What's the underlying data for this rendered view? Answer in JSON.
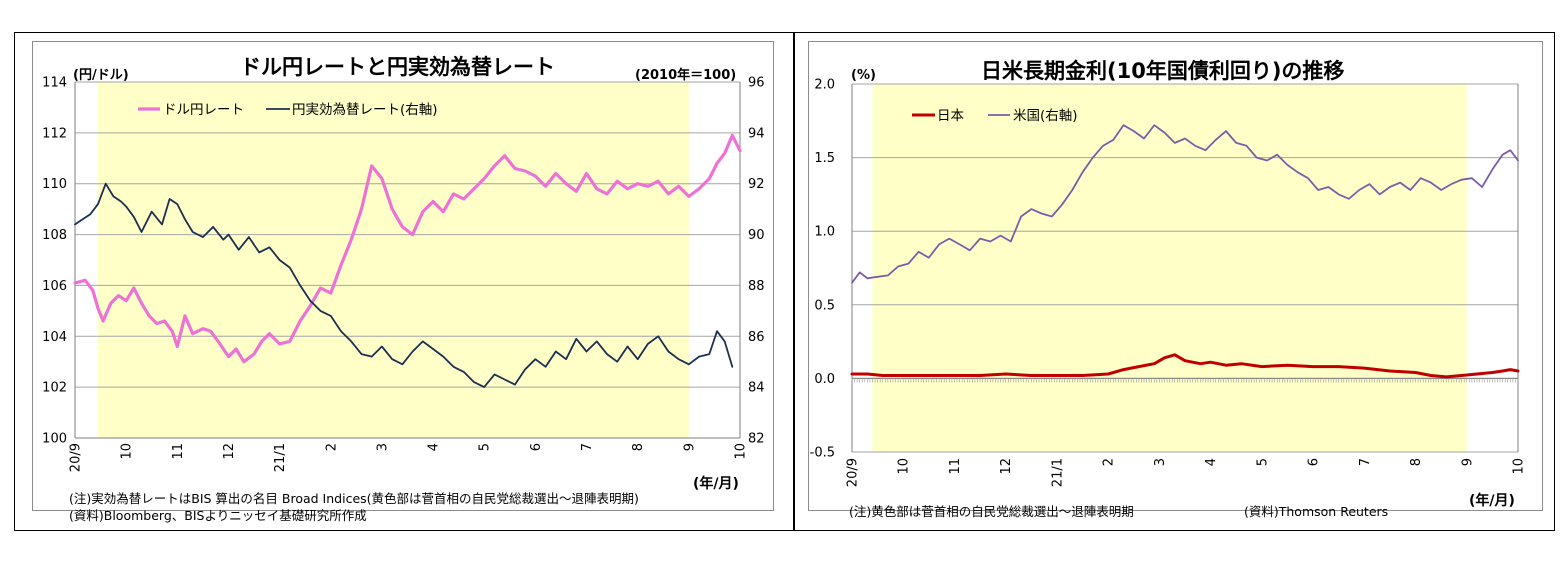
{
  "chart_data": [
    {
      "type": "line",
      "title": "ドル円レートと円実効為替レート",
      "ylabel": "(円/ドル)",
      "y2label": "(2010年＝100)",
      "xlabel": "(年/月)",
      "ylim": [
        100,
        114
      ],
      "y2lim": [
        82,
        96
      ],
      "yticks": [
        "100",
        "102",
        "104",
        "106",
        "108",
        "110",
        "112",
        "114"
      ],
      "y2ticks": [
        "82",
        "84",
        "86",
        "88",
        "90",
        "92",
        "94",
        "96"
      ],
      "x_tick_labels": [
        "20/9",
        "10",
        "11",
        "12",
        "21/1",
        "2",
        "3",
        "4",
        "5",
        "6",
        "7",
        "8",
        "9",
        "10"
      ],
      "x_range_months": [
        0,
        13
      ],
      "shaded_region_months": [
        0.45,
        12.0
      ],
      "legend_position": "top-left",
      "grid": "horizontal",
      "series": [
        {
          "name": "ドル円レート",
          "axis": "left",
          "color": "#ee72d6",
          "x_months": [
            0,
            0.2,
            0.35,
            0.45,
            0.55,
            0.7,
            0.85,
            1.0,
            1.15,
            1.3,
            1.45,
            1.6,
            1.75,
            1.9,
            2.0,
            2.15,
            2.3,
            2.5,
            2.65,
            2.8,
            3.0,
            3.15,
            3.3,
            3.5,
            3.65,
            3.8,
            4.0,
            4.2,
            4.4,
            4.6,
            4.8,
            5.0,
            5.2,
            5.4,
            5.6,
            5.8,
            6.0,
            6.2,
            6.4,
            6.6,
            6.8,
            7.0,
            7.2,
            7.4,
            7.6,
            7.8,
            8.0,
            8.2,
            8.4,
            8.6,
            8.8,
            9.0,
            9.2,
            9.4,
            9.6,
            9.8,
            10.0,
            10.2,
            10.4,
            10.6,
            10.8,
            11.0,
            11.2,
            11.4,
            11.6,
            11.8,
            12.0,
            12.2,
            12.4,
            12.55,
            12.7,
            12.85,
            13.0
          ],
          "values": [
            106.1,
            106.2,
            105.8,
            105.1,
            104.6,
            105.3,
            105.6,
            105.4,
            105.9,
            105.3,
            104.8,
            104.5,
            104.6,
            104.2,
            103.6,
            104.8,
            104.1,
            104.3,
            104.2,
            103.8,
            103.2,
            103.5,
            103.0,
            103.3,
            103.8,
            104.1,
            103.7,
            103.8,
            104.6,
            105.2,
            105.9,
            105.7,
            106.8,
            107.8,
            109.0,
            110.7,
            110.2,
            109.0,
            108.3,
            108.0,
            108.9,
            109.3,
            108.9,
            109.6,
            109.4,
            109.8,
            110.2,
            110.7,
            111.1,
            110.6,
            110.5,
            110.3,
            109.9,
            110.4,
            110.0,
            109.7,
            110.4,
            109.8,
            109.6,
            110.1,
            109.8,
            110.0,
            109.9,
            110.1,
            109.6,
            109.9,
            109.5,
            109.8,
            110.2,
            110.8,
            111.2,
            111.9,
            111.3
          ]
        },
        {
          "name": "円実効為替レート(右軸)",
          "axis": "right",
          "color": "#1c2f52",
          "x_months": [
            0,
            0.15,
            0.3,
            0.45,
            0.6,
            0.75,
            0.9,
            1.0,
            1.15,
            1.3,
            1.5,
            1.7,
            1.85,
            2.0,
            2.15,
            2.3,
            2.5,
            2.7,
            2.9,
            3.0,
            3.2,
            3.4,
            3.6,
            3.8,
            4.0,
            4.2,
            4.4,
            4.6,
            4.8,
            5.0,
            5.2,
            5.4,
            5.6,
            5.8,
            6.0,
            6.2,
            6.4,
            6.6,
            6.8,
            7.0,
            7.2,
            7.4,
            7.6,
            7.8,
            8.0,
            8.2,
            8.4,
            8.6,
            8.8,
            9.0,
            9.2,
            9.4,
            9.6,
            9.8,
            10.0,
            10.2,
            10.4,
            10.6,
            10.8,
            11.0,
            11.2,
            11.4,
            11.6,
            11.8,
            12.0,
            12.2,
            12.4,
            12.55,
            12.7,
            12.85
          ],
          "values": [
            90.4,
            90.6,
            90.8,
            91.2,
            92.0,
            91.5,
            91.3,
            91.1,
            90.7,
            90.1,
            90.9,
            90.4,
            91.4,
            91.2,
            90.6,
            90.1,
            89.9,
            90.3,
            89.8,
            90.0,
            89.4,
            89.9,
            89.3,
            89.5,
            89.0,
            88.7,
            88.0,
            87.4,
            87.0,
            86.8,
            86.2,
            85.8,
            85.3,
            85.2,
            85.6,
            85.1,
            84.9,
            85.4,
            85.8,
            85.5,
            85.2,
            84.8,
            84.6,
            84.2,
            84.0,
            84.5,
            84.3,
            84.1,
            84.7,
            85.1,
            84.8,
            85.4,
            85.1,
            85.9,
            85.4,
            85.8,
            85.3,
            85.0,
            85.6,
            85.1,
            85.7,
            86.0,
            85.4,
            85.1,
            84.9,
            85.2,
            85.3,
            86.2,
            85.8,
            84.8
          ]
        }
      ],
      "notes": [
        "(注)実効為替レートはBIS 算出の名目 Broad Indices(黄色部は菅首相の自民党総裁選出～退陣表明期)",
        "(資料)Bloomberg、BISよりニッセイ基礎研究所作成"
      ],
      "colors": {
        "shade": "#ffffc8",
        "grid": "#a6a6a6"
      }
    },
    {
      "type": "line",
      "title": "日米長期金利(10年国債利回り)の推移",
      "ylabel": "(%)",
      "xlabel": "(年/月)",
      "ylim": [
        -0.5,
        2.0
      ],
      "yticks": [
        "-0.5",
        "0.0",
        "0.5",
        "1.0",
        "1.5",
        "2.0"
      ],
      "x_tick_labels": [
        "20/9",
        "10",
        "11",
        "12",
        "21/1",
        "2",
        "3",
        "4",
        "5",
        "6",
        "7",
        "8",
        "9",
        "10"
      ],
      "x_range_months": [
        0,
        13
      ],
      "shaded_region_months": [
        0.4,
        12.0
      ],
      "legend_position": "top-left",
      "grid": "horizontal",
      "series": [
        {
          "name": "日本",
          "color": "#c00000",
          "x_months": [
            0,
            0.3,
            0.6,
            1.0,
            1.5,
            2.0,
            2.5,
            3.0,
            3.5,
            4.0,
            4.5,
            5.0,
            5.3,
            5.6,
            5.9,
            6.1,
            6.3,
            6.5,
            6.8,
            7.0,
            7.3,
            7.6,
            8.0,
            8.5,
            9.0,
            9.5,
            10.0,
            10.5,
            11.0,
            11.3,
            11.6,
            11.9,
            12.2,
            12.5,
            12.7,
            12.85,
            13.0
          ],
          "values": [
            0.03,
            0.03,
            0.02,
            0.02,
            0.02,
            0.02,
            0.02,
            0.03,
            0.02,
            0.02,
            0.02,
            0.03,
            0.06,
            0.08,
            0.1,
            0.14,
            0.16,
            0.12,
            0.1,
            0.11,
            0.09,
            0.1,
            0.08,
            0.09,
            0.08,
            0.08,
            0.07,
            0.05,
            0.04,
            0.02,
            0.01,
            0.02,
            0.03,
            0.04,
            0.05,
            0.06,
            0.05
          ]
        },
        {
          "name": "米国(右軸)",
          "color": "#7b5ea7",
          "x_months": [
            0,
            0.15,
            0.3,
            0.5,
            0.7,
            0.9,
            1.1,
            1.3,
            1.5,
            1.7,
            1.9,
            2.1,
            2.3,
            2.5,
            2.7,
            2.9,
            3.1,
            3.3,
            3.5,
            3.7,
            3.9,
            4.1,
            4.3,
            4.5,
            4.7,
            4.9,
            5.1,
            5.3,
            5.5,
            5.7,
            5.9,
            6.1,
            6.3,
            6.5,
            6.7,
            6.9,
            7.1,
            7.3,
            7.5,
            7.7,
            7.9,
            8.1,
            8.3,
            8.5,
            8.7,
            8.9,
            9.1,
            9.3,
            9.5,
            9.7,
            9.9,
            10.1,
            10.3,
            10.5,
            10.7,
            10.9,
            11.1,
            11.3,
            11.5,
            11.7,
            11.9,
            12.1,
            12.3,
            12.5,
            12.7,
            12.85,
            13.0
          ],
          "values": [
            0.65,
            0.72,
            0.68,
            0.69,
            0.7,
            0.76,
            0.78,
            0.86,
            0.82,
            0.91,
            0.95,
            0.91,
            0.87,
            0.95,
            0.93,
            0.97,
            0.93,
            1.1,
            1.15,
            1.12,
            1.1,
            1.18,
            1.28,
            1.4,
            1.5,
            1.58,
            1.62,
            1.72,
            1.68,
            1.63,
            1.72,
            1.67,
            1.6,
            1.63,
            1.58,
            1.55,
            1.62,
            1.68,
            1.6,
            1.58,
            1.5,
            1.48,
            1.52,
            1.45,
            1.4,
            1.36,
            1.28,
            1.3,
            1.25,
            1.22,
            1.28,
            1.32,
            1.25,
            1.3,
            1.33,
            1.28,
            1.36,
            1.33,
            1.28,
            1.32,
            1.35,
            1.36,
            1.3,
            1.42,
            1.52,
            1.55,
            1.48
          ]
        }
      ],
      "notes": [
        "(注)黄色部は菅首相の自民党総裁選出～退陣表明期",
        "(資料)Thomson Reuters"
      ],
      "colors": {
        "shade": "#ffffc8",
        "grid": "#a6a6a6"
      }
    }
  ]
}
